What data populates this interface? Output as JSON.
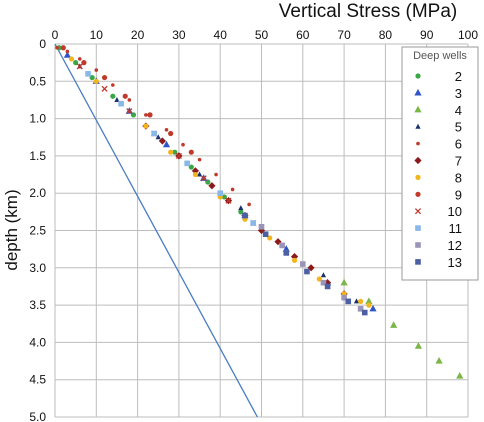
{
  "chart_data": {
    "type": "scatter",
    "title": "Vertical Stress (MPa)",
    "xlabel": "Vertical Stress (MPa)",
    "ylabel": "depth (km)",
    "x_ticks": [
      "0",
      "10",
      "20",
      "30",
      "40",
      "50",
      "60",
      "70",
      "80",
      "90",
      "100"
    ],
    "y_ticks": [
      "0",
      "0.5",
      "1.0",
      "1.5",
      "2.0",
      "2.5",
      "3.0",
      "3.5",
      "4.0",
      "4.5",
      "5.0"
    ],
    "xlim": [
      0,
      100
    ],
    "ylim": [
      0,
      5
    ],
    "x_axis_position": "top",
    "y_axis_inverted": true,
    "grid": true,
    "legend_title": "Deep wells",
    "legend_position": "top-right",
    "reference_line": {
      "x": [
        0,
        49
      ],
      "y": [
        0,
        5.0
      ],
      "color": "#4a7cc2"
    },
    "series": [
      {
        "name": "2",
        "marker": "circle",
        "color": "#3aa845",
        "x": [
          1,
          5,
          9,
          14,
          19,
          24,
          29,
          33,
          37,
          41,
          45
        ],
        "y": [
          0.05,
          0.25,
          0.45,
          0.7,
          0.95,
          1.2,
          1.45,
          1.65,
          1.85,
          2.05,
          2.25
        ]
      },
      {
        "name": "3",
        "marker": "triangle",
        "color": "#2f56c8",
        "x": [
          3,
          10,
          18,
          27,
          36,
          46,
          56,
          66,
          77
        ],
        "y": [
          0.15,
          0.5,
          0.9,
          1.35,
          1.8,
          2.3,
          2.75,
          3.2,
          3.55
        ]
      },
      {
        "name": "4",
        "marker": "triangle",
        "color": "#7ab648",
        "x": [
          70,
          76,
          82,
          88,
          93,
          98
        ],
        "y": [
          3.2,
          3.45,
          3.77,
          4.05,
          4.25,
          4.45
        ]
      },
      {
        "name": "5",
        "marker": "small-triangle",
        "color": "#1a2f6e",
        "x": [
          6,
          15,
          25,
          35,
          45,
          55,
          65,
          73
        ],
        "y": [
          0.3,
          0.75,
          1.25,
          1.75,
          2.2,
          2.7,
          3.1,
          3.45
        ]
      },
      {
        "name": "6",
        "marker": "small-circle",
        "color": "#c0392b",
        "x": [
          0.5,
          3,
          6,
          10,
          14,
          18,
          22,
          27,
          31,
          35,
          39,
          43,
          47
        ],
        "y": [
          0.05,
          0.1,
          0.2,
          0.35,
          0.55,
          0.75,
          0.95,
          1.15,
          1.35,
          1.55,
          1.75,
          1.95,
          2.15
        ]
      },
      {
        "name": "7",
        "marker": "diamond",
        "color": "#8b1a1a",
        "x": [
          22,
          26,
          30,
          34,
          38,
          42,
          46,
          50,
          54,
          58,
          62,
          66,
          70
        ],
        "y": [
          1.1,
          1.3,
          1.5,
          1.7,
          1.9,
          2.1,
          2.3,
          2.5,
          2.65,
          2.85,
          3.0,
          3.2,
          3.35
        ]
      },
      {
        "name": "8",
        "marker": "circle",
        "color": "#f2b51c",
        "x": [
          4,
          10,
          16,
          22,
          28,
          34,
          40,
          46,
          52,
          58,
          64,
          70,
          74,
          76
        ],
        "y": [
          0.2,
          0.5,
          0.8,
          1.1,
          1.45,
          1.75,
          2.05,
          2.35,
          2.6,
          2.9,
          3.15,
          3.35,
          3.45,
          3.5
        ]
      },
      {
        "name": "9",
        "marker": "circle",
        "color": "#c0392b",
        "x": [
          2,
          7,
          12,
          17,
          23,
          28,
          33
        ],
        "y": [
          0.05,
          0.25,
          0.45,
          0.7,
          0.95,
          1.2,
          1.45
        ]
      },
      {
        "name": "10",
        "marker": "x",
        "color": "#c0392b",
        "x": [
          6,
          12,
          18,
          24,
          30,
          36,
          42,
          48
        ],
        "y": [
          0.3,
          0.6,
          0.9,
          1.2,
          1.5,
          1.8,
          2.1,
          2.4
        ]
      },
      {
        "name": "11",
        "marker": "square",
        "color": "#88b8e8",
        "x": [
          8,
          16,
          24,
          32,
          40,
          48,
          56
        ],
        "y": [
          0.4,
          0.8,
          1.2,
          1.6,
          2.0,
          2.4,
          2.8
        ]
      },
      {
        "name": "12",
        "marker": "square",
        "color": "#9a94b8",
        "x": [
          50,
          55,
          60,
          65,
          70,
          74
        ],
        "y": [
          2.45,
          2.7,
          2.95,
          3.2,
          3.4,
          3.55
        ]
      },
      {
        "name": "13",
        "marker": "square",
        "color": "#4d5fa3",
        "x": [
          46,
          51,
          56,
          61,
          66,
          71,
          75
        ],
        "y": [
          2.3,
          2.55,
          2.8,
          3.05,
          3.25,
          3.45,
          3.6
        ]
      }
    ]
  }
}
